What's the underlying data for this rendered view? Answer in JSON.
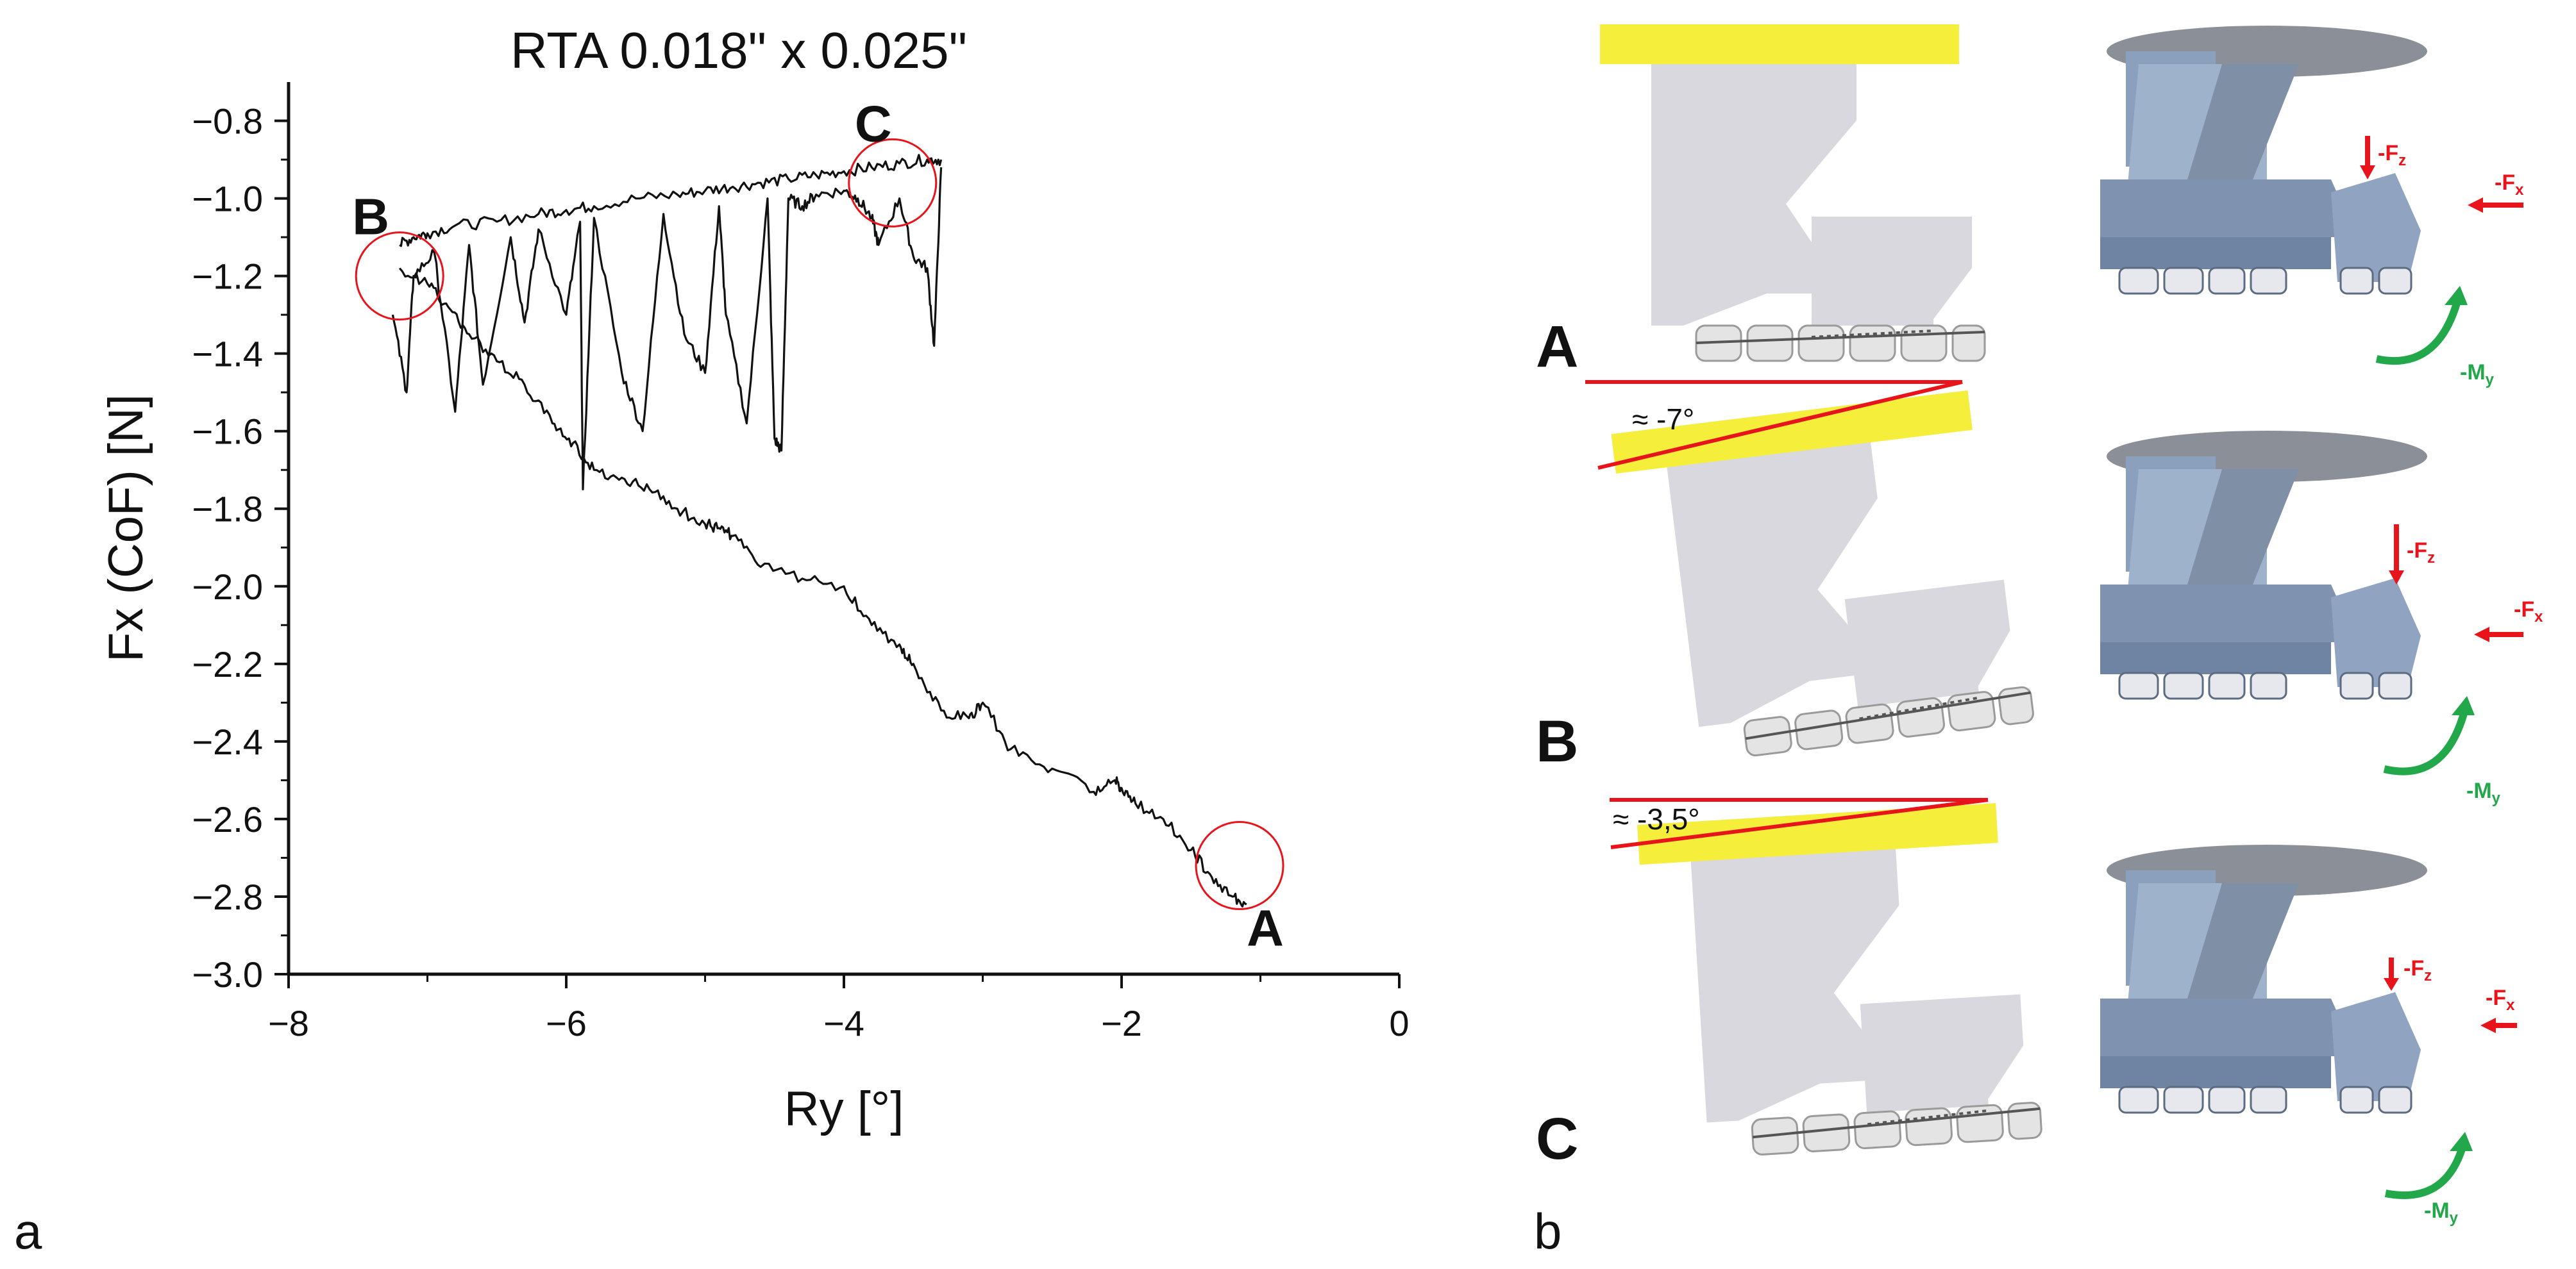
{
  "panel_labels": {
    "a": "a",
    "b": "b"
  },
  "chart_data": {
    "type": "line",
    "title": "RTA  0.018\" x 0.025\"",
    "xlabel": "Ry [°]",
    "ylabel": "Fx (CoF) [N]",
    "xlim": [
      -8,
      0
    ],
    "ylim": [
      -3.0,
      -0.7
    ],
    "x_ticks": [
      "−8",
      "−6",
      "−4",
      "−2",
      "0"
    ],
    "x_tick_values": [
      -8,
      -6,
      -4,
      -2,
      0
    ],
    "y_ticks": [
      "−0.8",
      "−1.0",
      "−1.2",
      "−1.4",
      "−1.6",
      "−1.8",
      "−2.0",
      "−2.2",
      "−2.4",
      "−2.6",
      "−2.8",
      "−3.0"
    ],
    "y_tick_values": [
      -0.8,
      -1.0,
      -1.2,
      -1.4,
      -1.6,
      -1.8,
      -2.0,
      -2.2,
      -2.4,
      -2.6,
      -2.8,
      -3.0
    ],
    "grid": false,
    "series": [
      {
        "values_x": [
          -1.1,
          -1.2,
          -1.35,
          -1.5,
          -1.7,
          -1.9,
          -2.0,
          -2.05,
          -2.2,
          -2.5,
          -2.8,
          -3.0,
          -3.1,
          -3.3,
          -3.5,
          -3.6,
          -3.8,
          -4.0,
          -4.3,
          -4.6,
          -4.8,
          -4.9,
          -5.0,
          -5.2,
          -5.4,
          -5.6,
          -5.8,
          -5.95,
          -6.1,
          -6.3,
          -6.5,
          -6.7,
          -6.85,
          -7.0,
          -7.2
        ],
        "values_y": [
          -2.82,
          -2.8,
          -2.75,
          -2.68,
          -2.6,
          -2.56,
          -2.52,
          -2.5,
          -2.53,
          -2.47,
          -2.42,
          -2.3,
          -2.34,
          -2.32,
          -2.2,
          -2.15,
          -2.1,
          -2.0,
          -1.98,
          -1.95,
          -1.87,
          -1.85,
          -1.84,
          -1.8,
          -1.75,
          -1.72,
          -1.7,
          -1.63,
          -1.58,
          -1.48,
          -1.42,
          -1.35,
          -1.28,
          -1.22,
          -1.18
        ]
      },
      {
        "values_x": [
          -7.2,
          -7.1,
          -7.0,
          -6.8,
          -6.5,
          -6.2,
          -6.0,
          -5.8,
          -5.5,
          -5.2,
          -5.0,
          -4.8,
          -4.6,
          -4.4,
          -4.2,
          -4.0,
          -3.8,
          -3.6,
          -3.4,
          -3.3
        ],
        "values_y": [
          -1.12,
          -1.1,
          -1.09,
          -1.07,
          -1.06,
          -1.04,
          -1.03,
          -1.02,
          -1.0,
          -0.99,
          -0.98,
          -0.97,
          -0.96,
          -0.95,
          -0.94,
          -0.93,
          -0.92,
          -0.91,
          -0.9,
          -0.9
        ]
      },
      {
        "values_x": [
          -7.25,
          -7.15,
          -7.1,
          -6.95,
          -6.8,
          -6.7,
          -6.6,
          -6.4,
          -6.3,
          -6.2,
          -6.0,
          -5.9,
          -5.88,
          -5.8,
          -5.6,
          -5.45,
          -5.3,
          -5.15,
          -5.0,
          -4.9,
          -4.85,
          -4.7,
          -4.55,
          -4.5,
          -4.45,
          -4.4,
          -4.3,
          -4.2,
          -4.0,
          -3.9,
          -3.8,
          -3.75,
          -3.6,
          -3.5,
          -3.4,
          -3.35,
          -3.3
        ],
        "values_y": [
          -1.3,
          -1.5,
          -1.2,
          -1.14,
          -1.55,
          -1.12,
          -1.48,
          -1.1,
          -1.32,
          -1.08,
          -1.3,
          -1.06,
          -1.75,
          -1.05,
          -1.45,
          -1.6,
          -1.04,
          -1.35,
          -1.45,
          -1.02,
          -1.3,
          -1.58,
          -1.0,
          -1.62,
          -1.65,
          -1.0,
          -1.02,
          -0.99,
          -0.98,
          -1.0,
          -1.05,
          -1.12,
          -1.0,
          -1.15,
          -1.18,
          -1.38,
          -0.92
        ]
      }
    ],
    "annotations": [
      {
        "label": "A",
        "x": -1.15,
        "y": -2.72
      },
      {
        "label": "B",
        "x": -7.2,
        "y": -1.2
      },
      {
        "label": "C",
        "x": -3.65,
        "y": -0.96
      }
    ]
  },
  "panel_b": {
    "rows": [
      {
        "label": "A",
        "angle": "",
        "Fz": "-F",
        "Fz_sub": "z",
        "Fx": "-F",
        "Fx_sub": "x",
        "My": "-M",
        "My_sub": "y"
      },
      {
        "label": "B",
        "angle": "≈ -7°",
        "Fz": "-F",
        "Fz_sub": "z",
        "Fx": "-F",
        "Fx_sub": "x",
        "My": "-M",
        "My_sub": "y"
      },
      {
        "label": "C",
        "angle": "≈ -3,5°",
        "Fz": "-F",
        "Fz_sub": "z",
        "Fx": "-F",
        "Fx_sub": "x",
        "My": "-M",
        "My_sub": "y"
      }
    ],
    "colors": {
      "force": "#e8141c",
      "moment": "#22a84a",
      "highlight": "#f5ef3c",
      "model": "#d9d8de",
      "model_3d": "#8ea2bf"
    }
  }
}
